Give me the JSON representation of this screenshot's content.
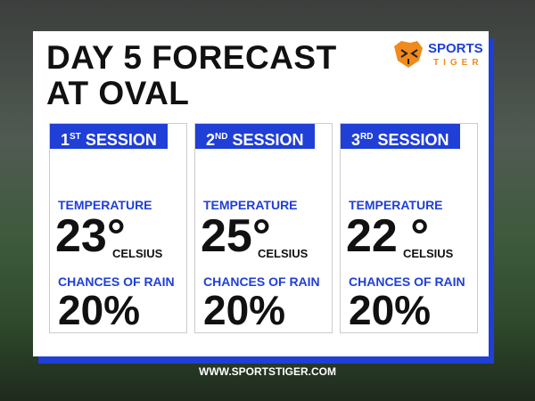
{
  "header": {
    "title_line1": "DAY 5 FORECAST",
    "title_line2": "AT OVAL",
    "logo_top": "SPORTS",
    "logo_bottom": "TIGER"
  },
  "sessions": [
    {
      "number": "1",
      "suffix": "ST",
      "label": "SESSION",
      "temperature_label": "TEMPERATURE",
      "temperature": "23°",
      "unit": "CELSIUS",
      "rain_label": "CHANCES OF RAIN",
      "rain": "20%"
    },
    {
      "number": "2",
      "suffix": "ND",
      "label": "SESSION",
      "temperature_label": "TEMPERATURE",
      "temperature": "25°",
      "unit": "CELSIUS",
      "rain_label": "CHANCES OF RAIN",
      "rain": "20%"
    },
    {
      "number": "3",
      "suffix": "RD",
      "label": "SESSION",
      "temperature_label": "TEMPERATURE",
      "temperature": "22 °",
      "unit": "CELSIUS",
      "rain_label": "CHANCES OF RAIN",
      "rain": "20%"
    }
  ],
  "footer": {
    "url": "WWW.SPORTSTIGER.COM"
  }
}
